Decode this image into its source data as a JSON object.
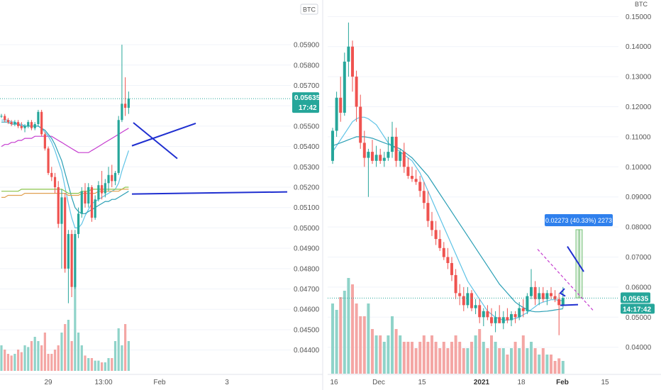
{
  "left_panel": {
    "currency_badge": "BTC",
    "price_tag": "0.05635",
    "timer_tag": "17:42",
    "x_ticks": [
      "29",
      "13:00",
      "Feb",
      "3"
    ]
  },
  "right_panel": {
    "currency_badge": "BTC",
    "price_tag": "0.05635",
    "timer_tag": "14:17:42",
    "measure_label": "0.02273 (40.33%) 2273",
    "x_ticks": [
      "16",
      "Dec",
      "15",
      "2021",
      "18",
      "Feb",
      "15"
    ]
  },
  "colors": {
    "up": "#26a69a",
    "down": "#ef5350",
    "vol_up": "#8fd3c9",
    "vol_down": "#f4a6a4",
    "ma_light": "#5ec3e6",
    "ma_teal": "#2a9fb5",
    "ma_magenta": "#c53ccf",
    "ma_green": "#8bc34a",
    "ma_orange": "#e0a050",
    "drawing": "#1f2fd0",
    "measure": "#2f80ed",
    "price_tag": "#26a69a"
  },
  "chart_data": [
    {
      "type": "candlestick",
      "title": "",
      "y_ticks": [
        "0.05900",
        "0.05800",
        "0.05700",
        "0.05600",
        "0.05500",
        "0.05400",
        "0.05300",
        "0.05200",
        "0.05100",
        "0.05000",
        "0.04900",
        "0.04800",
        "0.04700",
        "0.04600",
        "0.04500",
        "0.04400"
      ],
      "ylim": [
        0.0435,
        0.0605
      ],
      "last_price": 0.05635,
      "candles": [
        [
          0.0555,
          0.0556,
          0.0554,
          0.0555
        ],
        [
          0.0555,
          0.0556,
          0.0552,
          0.0553
        ],
        [
          0.0553,
          0.0554,
          0.0551,
          0.0552
        ],
        [
          0.0552,
          0.0553,
          0.055,
          0.0551
        ],
        [
          0.0551,
          0.0553,
          0.055,
          0.0552
        ],
        [
          0.0552,
          0.0553,
          0.0549,
          0.055
        ],
        [
          0.055,
          0.0552,
          0.0548,
          0.0549
        ],
        [
          0.0549,
          0.0551,
          0.0547,
          0.055
        ],
        [
          0.055,
          0.0553,
          0.0549,
          0.0552
        ],
        [
          0.0552,
          0.0553,
          0.0548,
          0.0549
        ],
        [
          0.0549,
          0.0552,
          0.0548,
          0.0551
        ],
        [
          0.0551,
          0.0558,
          0.055,
          0.0557
        ],
        [
          0.0557,
          0.0558,
          0.0545,
          0.0546
        ],
        [
          0.0546,
          0.0547,
          0.0538,
          0.0539
        ],
        [
          0.0539,
          0.054,
          0.0526,
          0.0527
        ],
        [
          0.0527,
          0.053,
          0.0523,
          0.0525
        ],
        [
          0.0525,
          0.0527,
          0.0517,
          0.052
        ],
        [
          0.052,
          0.0523,
          0.05,
          0.0502
        ],
        [
          0.0502,
          0.0519,
          0.048,
          0.0515
        ],
        [
          0.0515,
          0.0517,
          0.0478,
          0.048
        ],
        [
          0.048,
          0.0499,
          0.0463,
          0.0497
        ],
        [
          0.0497,
          0.0499,
          0.0466,
          0.0471
        ],
        [
          0.0471,
          0.0499,
          0.047,
          0.0497
        ],
        [
          0.0497,
          0.051,
          0.0495,
          0.0507
        ],
        [
          0.0507,
          0.052,
          0.0505,
          0.0518
        ],
        [
          0.0518,
          0.0522,
          0.051,
          0.0512
        ],
        [
          0.0512,
          0.0522,
          0.051,
          0.052
        ],
        [
          0.052,
          0.0521,
          0.0503,
          0.0505
        ],
        [
          0.0505,
          0.0516,
          0.0504,
          0.0514
        ],
        [
          0.0514,
          0.0523,
          0.0513,
          0.0521
        ],
        [
          0.0521,
          0.0528,
          0.0514,
          0.0517
        ],
        [
          0.0517,
          0.0524,
          0.0515,
          0.0522
        ],
        [
          0.0522,
          0.053,
          0.0518,
          0.0526
        ],
        [
          0.0526,
          0.0531,
          0.052,
          0.0523
        ],
        [
          0.0523,
          0.0528,
          0.0521,
          0.0527
        ],
        [
          0.0527,
          0.0555,
          0.0526,
          0.0553
        ],
        [
          0.0553,
          0.059,
          0.0552,
          0.0561
        ],
        [
          0.0561,
          0.0574,
          0.0555,
          0.0559
        ],
        [
          0.0559,
          0.0567,
          0.0556,
          0.05635
        ]
      ],
      "volumes": [
        0.3,
        0.25,
        0.2,
        0.18,
        0.2,
        0.25,
        0.22,
        0.3,
        0.28,
        0.35,
        0.4,
        0.35,
        0.3,
        0.45,
        0.2,
        0.2,
        0.25,
        0.3,
        0.45,
        0.55,
        0.6,
        0.35,
        1.0,
        0.45,
        0.3,
        0.18,
        0.15,
        0.15,
        0.12,
        0.12,
        0.1,
        0.1,
        0.15,
        0.15,
        0.35,
        0.5,
        0.3,
        0.55,
        0.35
      ],
      "moving_averages": [
        {
          "color_key": "ma_magenta",
          "values": [
            0.054,
            0.0541,
            0.0541,
            0.0542,
            0.0542,
            0.0543,
            0.0543,
            0.0544,
            0.0544,
            0.0544,
            0.0545,
            0.0545,
            0.0545,
            0.0545,
            0.0545,
            0.0545,
            0.0544,
            0.0543,
            0.0542,
            0.0541,
            0.054,
            0.0539,
            0.0538,
            0.0537,
            0.0537,
            0.0537,
            0.0537,
            0.0538,
            0.0539,
            0.054,
            0.0541,
            0.0542,
            0.0543,
            0.0544,
            0.0545,
            0.0546,
            0.0547,
            0.0548,
            0.0549
          ]
        },
        {
          "color_key": "ma_light",
          "values": [
            0.0553,
            0.0553,
            0.0553,
            0.0552,
            0.0552,
            0.0551,
            0.0551,
            0.055,
            0.055,
            0.055,
            0.055,
            0.055,
            0.0549,
            0.0547,
            0.0545,
            0.0542,
            0.0538,
            0.0533,
            0.0528,
            0.052,
            0.0512,
            0.0505,
            0.05,
            0.05,
            0.0502,
            0.0506,
            0.0509,
            0.0512,
            0.0513,
            0.0514,
            0.0515,
            0.0516,
            0.0517,
            0.0518,
            0.0519,
            0.0522,
            0.0528,
            0.0533,
            0.0538
          ]
        },
        {
          "color_key": "ma_teal",
          "values": [
            0.0552,
            0.0552,
            0.0552,
            0.0551,
            0.0551,
            0.0551,
            0.055,
            0.055,
            0.055,
            0.055,
            0.055,
            0.055,
            0.0549,
            0.0548,
            0.0546,
            0.0544,
            0.0541,
            0.0537,
            0.0533,
            0.0527,
            0.0521,
            0.0515,
            0.051,
            0.0508,
            0.0507,
            0.0507,
            0.0508,
            0.0509,
            0.051,
            0.0511,
            0.0512,
            0.0513,
            0.0513,
            0.0514,
            0.0514,
            0.0515,
            0.0516,
            0.0517,
            0.0518
          ]
        },
        {
          "color_key": "ma_green",
          "values": [
            0.0518,
            0.0518,
            0.0518,
            0.0518,
            0.0518,
            0.0518,
            0.0519,
            0.0519,
            0.0519,
            0.0519,
            0.0519,
            0.0519,
            0.0519,
            0.0519,
            0.0519,
            0.0519,
            0.0519,
            0.0519,
            0.0519,
            0.0518,
            0.0517,
            0.0517,
            0.0517,
            0.0517,
            0.0518,
            0.0518,
            0.0518,
            0.0519,
            0.0519,
            0.0519,
            0.0519,
            0.0519,
            0.0519,
            0.0519,
            0.0519,
            0.0519,
            0.0519,
            0.052,
            0.052
          ]
        },
        {
          "color_key": "ma_orange",
          "values": [
            0.0515,
            0.0515,
            0.0516,
            0.0516,
            0.0516,
            0.0516,
            0.0516,
            0.0517,
            0.0517,
            0.0517,
            0.0517,
            0.0517,
            0.0517,
            0.0517,
            0.0517,
            0.0517,
            0.0517,
            0.0517,
            0.0517,
            0.0517,
            0.0516,
            0.0516,
            0.0516,
            0.0516,
            0.0517,
            0.0517,
            0.0517,
            0.0517,
            0.0517,
            0.0518,
            0.0518,
            0.0518,
            0.0518,
            0.0518,
            0.0518,
            0.0518,
            0.0519,
            0.0519,
            0.0519
          ]
        }
      ],
      "drawings": {
        "support_line": 0.0517,
        "cross_line_1": [
          [
            0.0548,
            0
          ],
          [
            0.055,
            1
          ]
        ],
        "cross_line_2": [
          [
            0.0551,
            0
          ],
          [
            0.054,
            1
          ]
        ]
      }
    },
    {
      "type": "candlestick",
      "title": "",
      "y_ticks": [
        "0.15000",
        "0.14000",
        "0.13000",
        "0.12000",
        "0.11000",
        "0.10000",
        "0.09000",
        "0.08000",
        "0.07000",
        "0.06000",
        "0.05000",
        "0.04000"
      ],
      "ylim": [
        0.0312,
        0.1555
      ],
      "last_price": 0.05635,
      "candles": [
        [
          0.102,
          0.113,
          0.101,
          0.112
        ],
        [
          0.112,
          0.125,
          0.11,
          0.123
        ],
        [
          0.123,
          0.13,
          0.115,
          0.118
        ],
        [
          0.118,
          0.138,
          0.117,
          0.135
        ],
        [
          0.135,
          0.148,
          0.13,
          0.14
        ],
        [
          0.14,
          0.142,
          0.125,
          0.13
        ],
        [
          0.13,
          0.132,
          0.115,
          0.12
        ],
        [
          0.12,
          0.124,
          0.106,
          0.108
        ],
        [
          0.108,
          0.112,
          0.1,
          0.103
        ],
        [
          0.103,
          0.106,
          0.09,
          0.105
        ],
        [
          0.105,
          0.109,
          0.101,
          0.102
        ],
        [
          0.102,
          0.107,
          0.1,
          0.104
        ],
        [
          0.104,
          0.106,
          0.101,
          0.102
        ],
        [
          0.102,
          0.105,
          0.1,
          0.103
        ],
        [
          0.103,
          0.11,
          0.102,
          0.105
        ],
        [
          0.105,
          0.115,
          0.103,
          0.11
        ],
        [
          0.11,
          0.113,
          0.1,
          0.102
        ],
        [
          0.102,
          0.106,
          0.1,
          0.105
        ],
        [
          0.105,
          0.108,
          0.098,
          0.1
        ],
        [
          0.1,
          0.103,
          0.096,
          0.097
        ],
        [
          0.097,
          0.1,
          0.095,
          0.096
        ],
        [
          0.096,
          0.099,
          0.094,
          0.095
        ],
        [
          0.095,
          0.097,
          0.09,
          0.092
        ],
        [
          0.092,
          0.095,
          0.086,
          0.088
        ],
        [
          0.088,
          0.092,
          0.08,
          0.082
        ],
        [
          0.082,
          0.085,
          0.077,
          0.079
        ],
        [
          0.079,
          0.082,
          0.074,
          0.076
        ],
        [
          0.076,
          0.079,
          0.072,
          0.073
        ],
        [
          0.073,
          0.075,
          0.069,
          0.07
        ],
        [
          0.07,
          0.073,
          0.066,
          0.068
        ],
        [
          0.068,
          0.07,
          0.062,
          0.064
        ],
        [
          0.064,
          0.066,
          0.056,
          0.058
        ],
        [
          0.058,
          0.061,
          0.054,
          0.057
        ],
        [
          0.057,
          0.06,
          0.052,
          0.054
        ],
        [
          0.054,
          0.06,
          0.053,
          0.058
        ],
        [
          0.058,
          0.059,
          0.052,
          0.053
        ],
        [
          0.053,
          0.056,
          0.051,
          0.054
        ],
        [
          0.054,
          0.056,
          0.048,
          0.05
        ],
        [
          0.05,
          0.053,
          0.047,
          0.052
        ],
        [
          0.052,
          0.054,
          0.049,
          0.05
        ],
        [
          0.05,
          0.053,
          0.047,
          0.048
        ],
        [
          0.048,
          0.052,
          0.045,
          0.05
        ],
        [
          0.05,
          0.054,
          0.048,
          0.048
        ],
        [
          0.048,
          0.052,
          0.046,
          0.05
        ],
        [
          0.05,
          0.053,
          0.048,
          0.049
        ],
        [
          0.049,
          0.052,
          0.047,
          0.051
        ],
        [
          0.051,
          0.052,
          0.048,
          0.05
        ],
        [
          0.05,
          0.055,
          0.049,
          0.053
        ],
        [
          0.053,
          0.056,
          0.05,
          0.052
        ],
        [
          0.052,
          0.058,
          0.051,
          0.057
        ],
        [
          0.057,
          0.066,
          0.056,
          0.06
        ],
        [
          0.06,
          0.062,
          0.054,
          0.056
        ],
        [
          0.056,
          0.06,
          0.054,
          0.058
        ],
        [
          0.058,
          0.06,
          0.055,
          0.056
        ],
        [
          0.056,
          0.059,
          0.054,
          0.058
        ],
        [
          0.058,
          0.06,
          0.056,
          0.057
        ],
        [
          0.057,
          0.059,
          0.055,
          0.056
        ],
        [
          0.056,
          0.058,
          0.044,
          0.054
        ],
        [
          0.054,
          0.06,
          0.053,
          0.05635
        ]
      ],
      "volumes": [
        0.55,
        0.5,
        0.6,
        0.65,
        0.75,
        0.7,
        0.55,
        0.45,
        0.45,
        0.55,
        0.35,
        0.3,
        0.3,
        0.25,
        0.3,
        0.45,
        0.35,
        0.3,
        0.25,
        0.25,
        0.25,
        0.2,
        0.25,
        0.3,
        0.25,
        0.3,
        0.25,
        0.2,
        0.25,
        0.2,
        0.25,
        0.3,
        0.25,
        0.2,
        0.2,
        0.25,
        0.3,
        0.35,
        0.25,
        0.2,
        0.3,
        0.25,
        0.2,
        0.2,
        0.15,
        0.2,
        0.25,
        0.2,
        0.3,
        0.2,
        0.25,
        0.2,
        0.15,
        0.2,
        0.15,
        0.15,
        0.1,
        0.12,
        0.1
      ],
      "moving_averages": [
        {
          "color_key": "ma_light",
          "values": [
            0.105,
            0.107,
            0.109,
            0.111,
            0.113,
            0.115,
            0.116,
            0.1165,
            0.1165,
            0.116,
            0.115,
            0.114,
            0.112,
            0.11,
            0.108,
            0.107,
            0.106,
            0.105,
            0.104,
            0.103,
            0.102,
            0.1,
            0.098,
            0.095,
            0.092,
            0.089,
            0.086,
            0.083,
            0.08,
            0.077,
            0.074,
            0.071,
            0.068,
            0.065,
            0.062,
            0.06,
            0.058,
            0.056,
            0.054,
            0.052,
            0.051,
            0.05,
            0.0495,
            0.049,
            0.049,
            0.0492,
            0.0496,
            0.05,
            0.0508,
            0.0515,
            0.0525,
            0.0535,
            0.0545,
            0.055,
            0.0554,
            0.0558,
            0.0558,
            0.0556,
            0.0555
          ]
        },
        {
          "color_key": "ma_teal",
          "values": [
            0.107,
            0.1075,
            0.108,
            0.1085,
            0.109,
            0.1095,
            0.11,
            0.11,
            0.11,
            0.1098,
            0.1095,
            0.109,
            0.1085,
            0.108,
            0.1075,
            0.107,
            0.1065,
            0.106,
            0.105,
            0.104,
            0.103,
            0.1015,
            0.1,
            0.0985,
            0.097,
            0.095,
            0.093,
            0.091,
            0.089,
            0.087,
            0.085,
            0.083,
            0.081,
            0.079,
            0.077,
            0.075,
            0.073,
            0.071,
            0.069,
            0.067,
            0.065,
            0.063,
            0.061,
            0.0595,
            0.058,
            0.0565,
            0.055,
            0.054,
            0.0532,
            0.0525,
            0.052,
            0.0518,
            0.0518,
            0.0519,
            0.052,
            0.0522,
            0.0524,
            0.0526,
            0.0528
          ]
        }
      ],
      "drawings": {
        "support_line": 0.0537,
        "measure_from": 0.0564,
        "measure_to": 0.0791,
        "trend_line": [
          [
            0.078,
            0
          ],
          [
            0.072,
            1
          ]
        ],
        "dashed_projection": [
          [
            0.07,
            0
          ],
          [
            0.057,
            1
          ]
        ]
      }
    }
  ]
}
